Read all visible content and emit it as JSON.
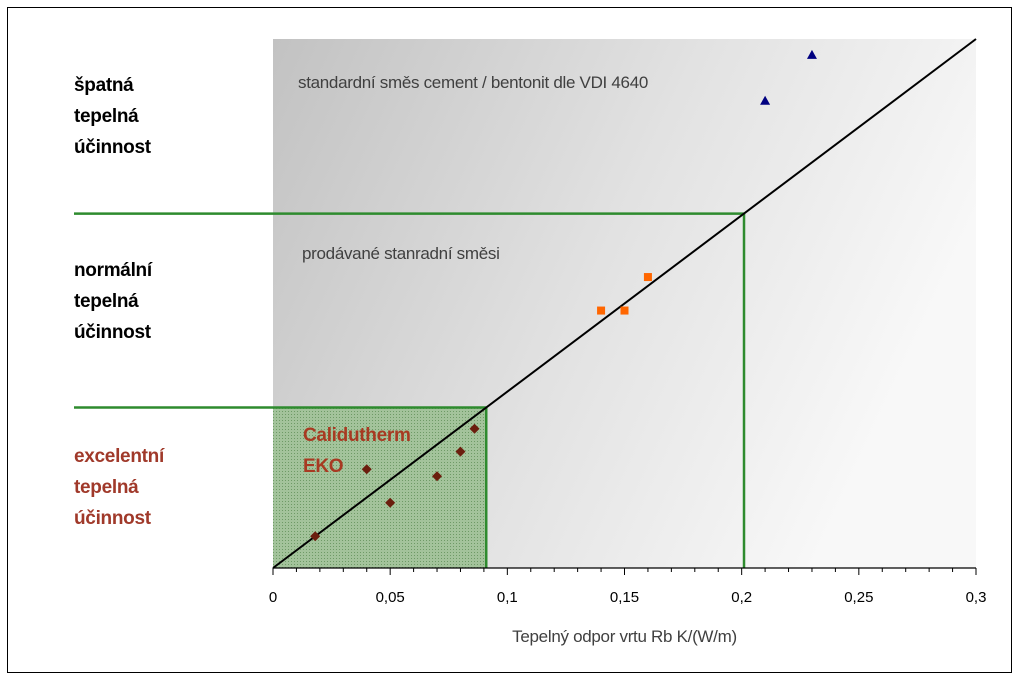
{
  "categories_labels": {
    "poor": [
      "špatná",
      "tepelná",
      "účinnost"
    ],
    "normal": [
      "normální",
      "tepelná",
      "účinnost"
    ],
    "excellent": [
      "excelentní",
      "tepelná",
      "účinnost"
    ]
  },
  "notes": {
    "standard": "standardní směs cement / bentonit dle VDI 4640",
    "sold": "prodávané stanradní směsi"
  },
  "brand": [
    "Calidutherm",
    "EKO"
  ],
  "colors": {
    "line": "#000000",
    "threshold": "#2e8b2e",
    "excellent_text": "#a0392a",
    "series_diamond": "#6b1e0e",
    "series_square": "#ff6600",
    "series_triangle": "#000080",
    "shade_dark": "#c2c2c2",
    "shade_light": "#f7f7f7",
    "excellent_fill": "#96bc8e"
  },
  "chart_data": {
    "type": "scatter",
    "title": "",
    "xlabel": "Tepelný odpor vrtu Rb K/(W/m)",
    "ylabel": "",
    "xlim": [
      0,
      0.3
    ],
    "x_ticks": [
      "0",
      "0,05",
      "0,1",
      "0,15",
      "0,2",
      "0,25",
      "0,3"
    ],
    "x_tick_values": [
      0,
      0.05,
      0.1,
      0.15,
      0.2,
      0.25,
      0.3
    ],
    "grid": false,
    "reference_line": {
      "x_start": 0,
      "x_end": 0.3
    },
    "thresholds_x": [
      0.091,
      0.201
    ],
    "series": [
      {
        "marker": "diamond",
        "color": "#6b1e0e",
        "points": [
          {
            "x": 0.018,
            "y": 0.018
          },
          {
            "x": 0.04,
            "y": 0.056
          },
          {
            "x": 0.05,
            "y": 0.037
          },
          {
            "x": 0.07,
            "y": 0.052
          },
          {
            "x": 0.08,
            "y": 0.066
          },
          {
            "x": 0.086,
            "y": 0.079
          }
        ]
      },
      {
        "marker": "square",
        "color": "#ff6600",
        "points": [
          {
            "x": 0.14,
            "y": 0.146
          },
          {
            "x": 0.15,
            "y": 0.146
          },
          {
            "x": 0.16,
            "y": 0.165
          }
        ]
      },
      {
        "marker": "triangle",
        "color": "#000080",
        "points": [
          {
            "x": 0.21,
            "y": 0.265
          },
          {
            "x": 0.23,
            "y": 0.291
          }
        ]
      }
    ]
  }
}
